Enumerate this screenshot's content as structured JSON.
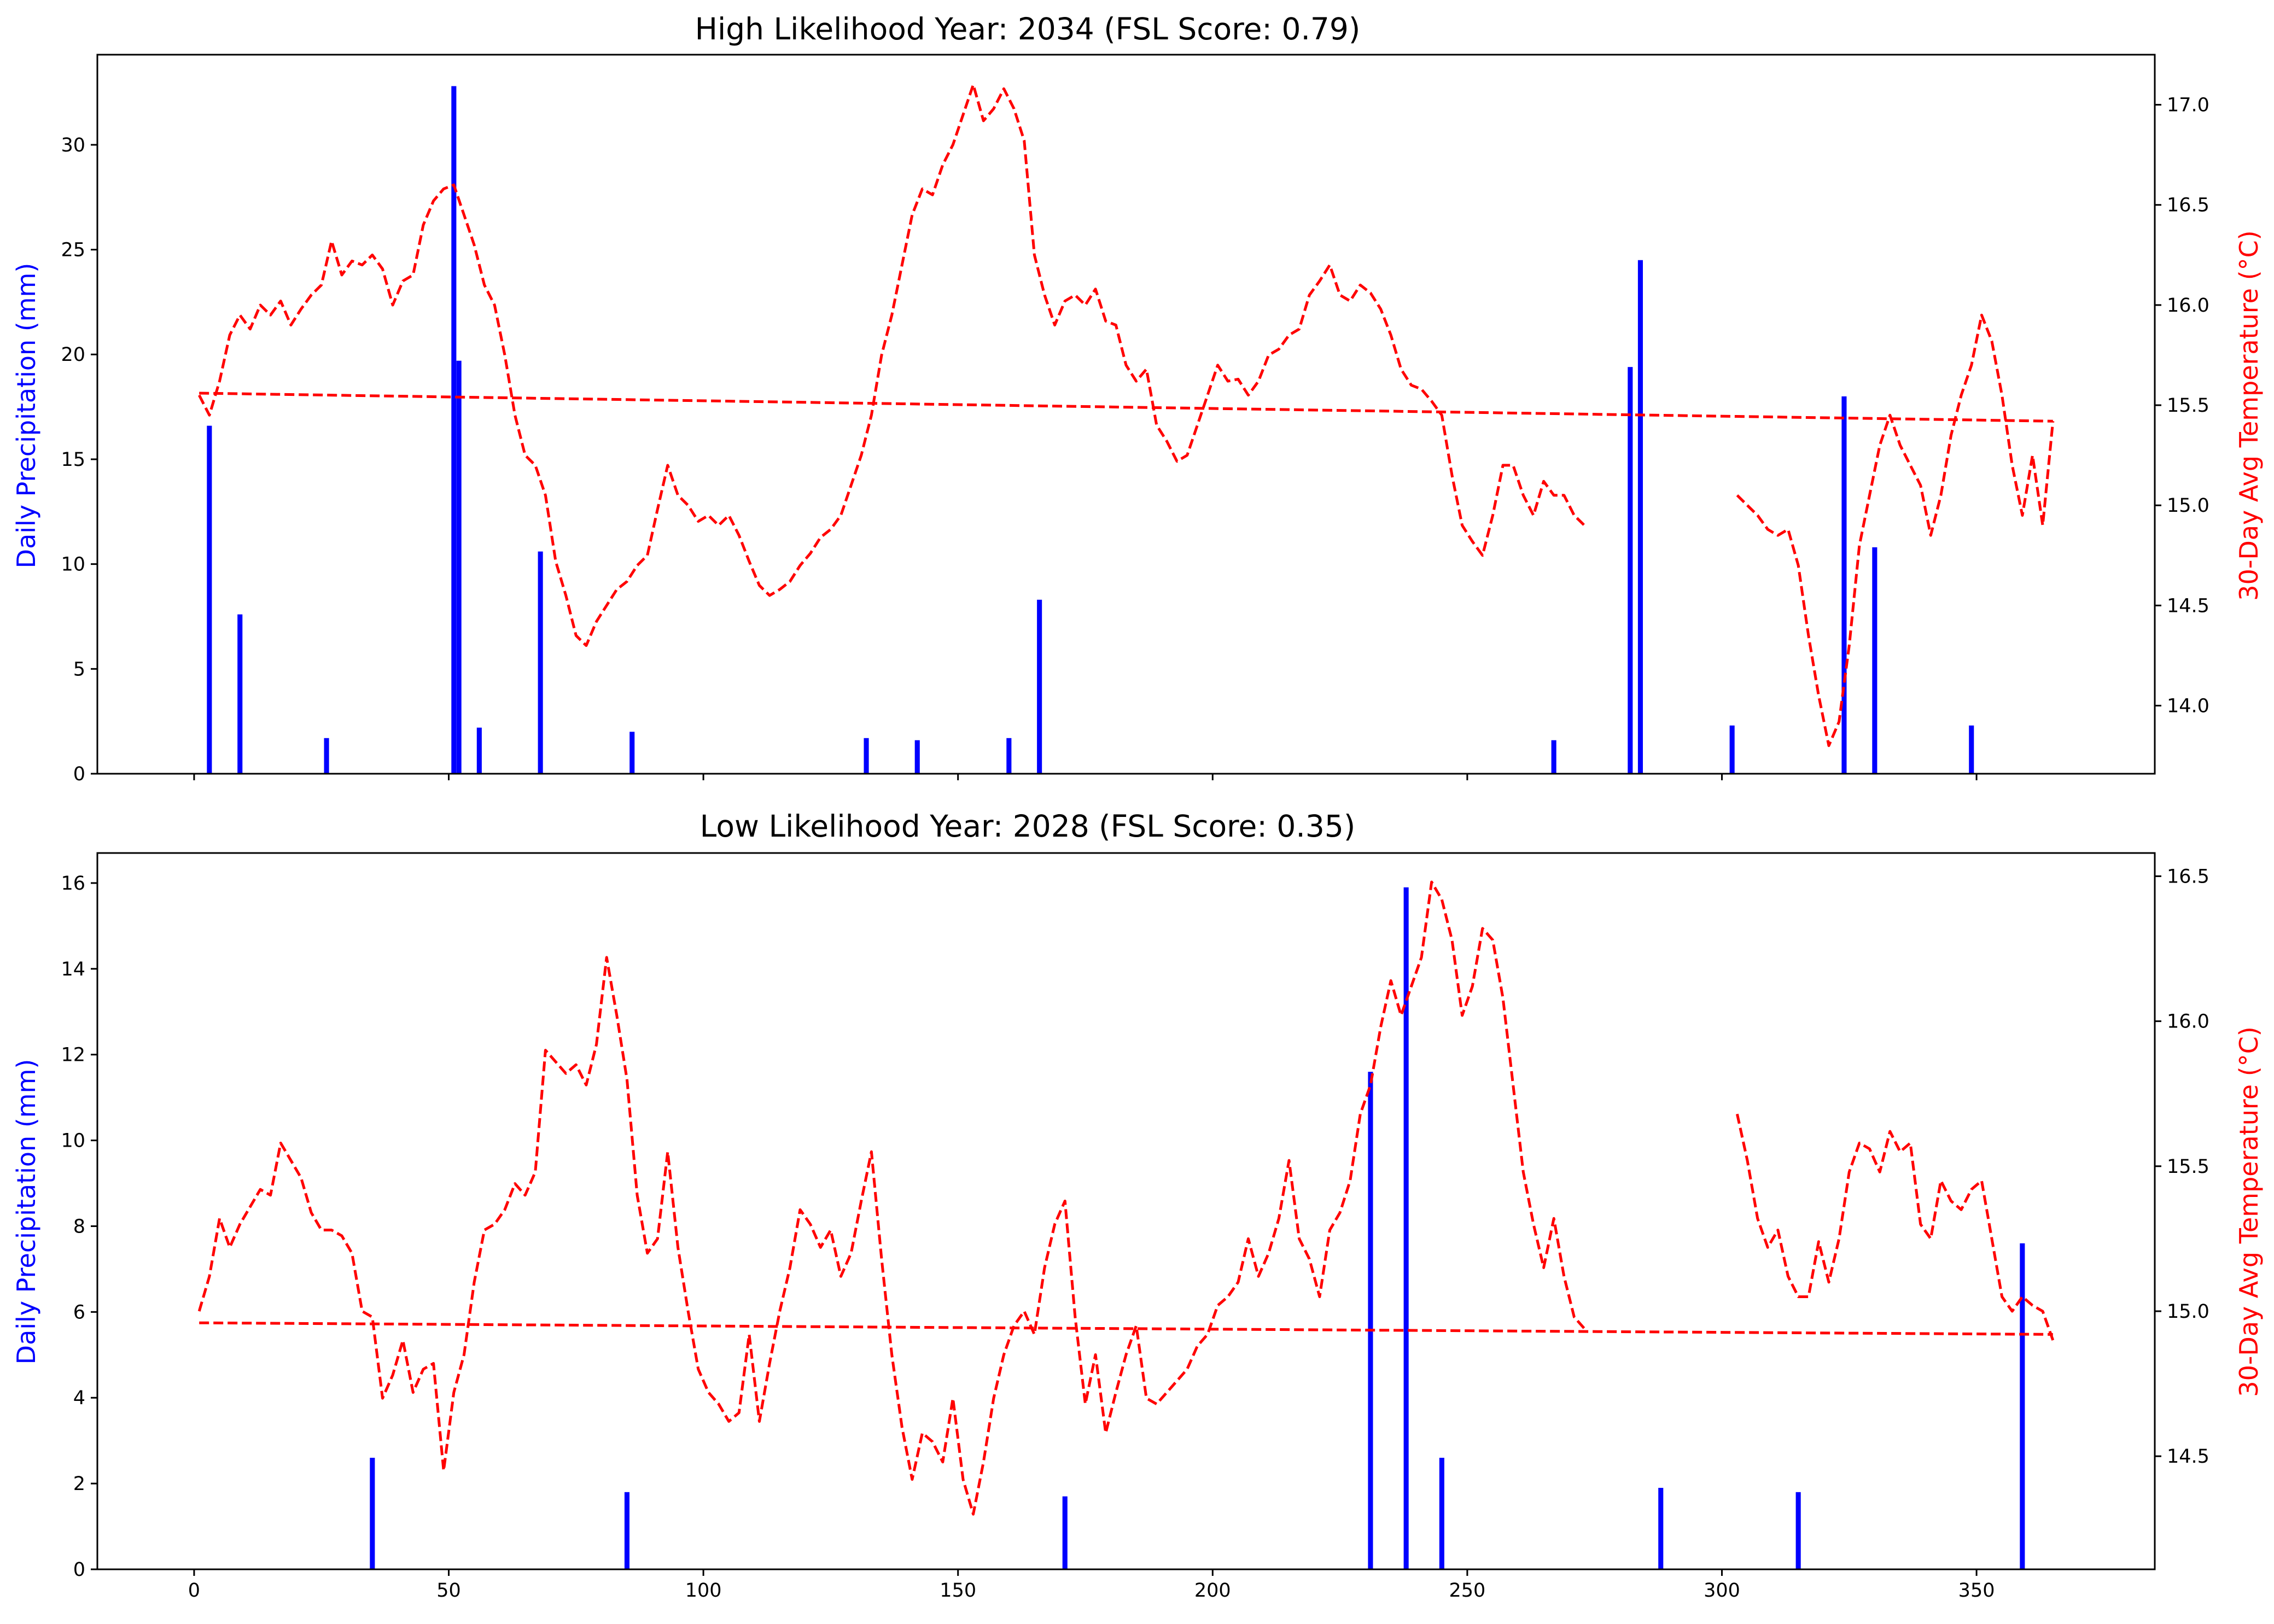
{
  "colors": {
    "precip": "#0000ff",
    "temp": "#ff0000",
    "axis": "#000000"
  },
  "chart_data": [
    {
      "type": "bar",
      "title": "High Likelihood Year: 2034 (FSL Score: 0.79)",
      "ylabel": "Daily Precipitation (mm)",
      "y2label": "30-Day Avg Temperature (°C)",
      "xlim": [
        -19,
        385
      ],
      "ylim": [
        0,
        34.3
      ],
      "y2lim": [
        13.66,
        17.25
      ],
      "x_ticks": [
        0,
        50,
        100,
        150,
        200,
        250,
        300,
        350
      ],
      "x_tick_labels": [],
      "y_ticks": [
        0,
        5,
        10,
        15,
        20,
        25,
        30
      ],
      "y_tick_labels": [
        "0",
        "5",
        "10",
        "15",
        "20",
        "25",
        "30"
      ],
      "y2_ticks": [
        14.0,
        14.5,
        15.0,
        15.5,
        16.0,
        16.5,
        17.0
      ],
      "y2_tick_labels": [
        "14.0",
        "14.5",
        "15.0",
        "15.5",
        "16.0",
        "16.5",
        "17.0"
      ],
      "precipitation": {
        "x": [
          3,
          9,
          26,
          51,
          52,
          56,
          68,
          86,
          132,
          142,
          160,
          166,
          267,
          282,
          284,
          302,
          324,
          330,
          349
        ],
        "values": [
          16.6,
          7.6,
          1.7,
          32.8,
          19.7,
          2.2,
          10.6,
          2.0,
          1.7,
          1.6,
          1.7,
          8.3,
          1.6,
          19.4,
          24.5,
          2.3,
          18.0,
          10.8,
          2.3
        ]
      },
      "temperature": [
        {
          "x": [
            1,
            3,
            5,
            7,
            9,
            11,
            13,
            15,
            17,
            19,
            21,
            23,
            25,
            27,
            29,
            31,
            33,
            35,
            37,
            39,
            41,
            43,
            45,
            47,
            49,
            51,
            53,
            55,
            57,
            59,
            61,
            63,
            65,
            67,
            69,
            71,
            73,
            75,
            77,
            79,
            81,
            83,
            85,
            87,
            89,
            91,
            93,
            95,
            97,
            99,
            101,
            103,
            105,
            107,
            109,
            111,
            113,
            115,
            117,
            119,
            121,
            123,
            125,
            127,
            129,
            131,
            133,
            135,
            137,
            139,
            141,
            143,
            145,
            147,
            149,
            151,
            153,
            155,
            157,
            159,
            161,
            163,
            165,
            167,
            169,
            171,
            173,
            175,
            177,
            179,
            181,
            183,
            185,
            187,
            189,
            191,
            193,
            195,
            197,
            199,
            201,
            203,
            205,
            207,
            209,
            211,
            213,
            215,
            217,
            219,
            221,
            223,
            225,
            227,
            229,
            231,
            233,
            235,
            237,
            239,
            241,
            243,
            245,
            247,
            249,
            251,
            253,
            255,
            257,
            259,
            261,
            263,
            265,
            267,
            269,
            271,
            273
          ],
          "values": [
            15.55,
            15.45,
            15.62,
            15.85,
            15.95,
            15.88,
            16.0,
            15.95,
            16.02,
            15.9,
            15.98,
            16.05,
            16.1,
            16.32,
            16.15,
            16.22,
            16.2,
            16.25,
            16.18,
            16.0,
            16.12,
            16.15,
            16.4,
            16.52,
            16.58,
            16.6,
            16.45,
            16.3,
            16.1,
            16.0,
            15.75,
            15.45,
            15.25,
            15.2,
            15.05,
            14.72,
            14.55,
            14.35,
            14.3,
            14.42,
            14.5,
            14.58,
            14.62,
            14.7,
            14.75,
            14.98,
            15.2,
            15.05,
            15.0,
            14.92,
            14.95,
            14.9,
            14.95,
            14.85,
            14.72,
            14.6,
            14.55,
            14.58,
            14.62,
            14.7,
            14.76,
            14.84,
            14.88,
            14.95,
            15.1,
            15.25,
            15.45,
            15.75,
            15.95,
            16.2,
            16.45,
            16.58,
            16.55,
            16.7,
            16.8,
            16.95,
            17.1,
            16.92,
            16.98,
            17.08,
            16.98,
            16.82,
            16.25,
            16.05,
            15.9,
            16.02,
            16.05,
            16.0,
            16.08,
            15.92,
            15.9,
            15.7,
            15.62,
            15.68,
            15.4,
            15.32,
            15.22,
            15.25,
            15.4,
            15.55,
            15.7,
            15.62,
            15.63,
            15.55,
            15.62,
            15.75,
            15.78,
            15.85,
            15.88,
            16.05,
            16.12,
            16.2,
            16.05,
            16.02,
            16.1,
            16.06,
            15.98,
            15.85,
            15.68,
            15.6,
            15.58,
            15.52,
            15.45,
            15.15,
            14.9,
            14.82,
            14.75,
            14.95,
            15.2,
            15.2,
            15.05,
            14.95,
            15.12,
            15.05,
            15.05,
            14.95,
            14.9
          ]
        },
        {
          "x": [
            303,
            305,
            307,
            309,
            311,
            313,
            315,
            317,
            319,
            321,
            323,
            325,
            327,
            329,
            331,
            333,
            335,
            337,
            339,
            341,
            343,
            345,
            347,
            349,
            351,
            353,
            355,
            357,
            359,
            361,
            363,
            365
          ],
          "values": [
            15.05,
            15.0,
            14.95,
            14.88,
            14.85,
            14.88,
            14.7,
            14.35,
            14.05,
            13.8,
            13.92,
            14.3,
            14.8,
            15.05,
            15.3,
            15.45,
            15.3,
            15.2,
            15.1,
            14.85,
            15.05,
            15.35,
            15.55,
            15.7,
            15.95,
            15.82,
            15.55,
            15.2,
            14.95,
            15.25,
            14.9,
            15.42
          ]
        }
      ],
      "trend": {
        "x": [
          1,
          365
        ],
        "values": [
          15.56,
          15.42
        ]
      }
    },
    {
      "type": "bar",
      "title": "Low Likelihood Year: 2028 (FSL Score: 0.35)",
      "ylabel": "Daily Precipitation (mm)",
      "y2label": "30-Day Avg Temperature (°C)",
      "xlim": [
        -19,
        385
      ],
      "ylim": [
        0,
        16.7
      ],
      "y2lim": [
        14.11,
        16.58
      ],
      "x_ticks": [
        0,
        50,
        100,
        150,
        200,
        250,
        300,
        350
      ],
      "x_tick_labels": [
        "0",
        "50",
        "100",
        "150",
        "200",
        "250",
        "300",
        "350"
      ],
      "y_ticks": [
        0,
        2,
        4,
        6,
        8,
        10,
        12,
        14,
        16
      ],
      "y_tick_labels": [
        "0",
        "2",
        "4",
        "6",
        "8",
        "10",
        "12",
        "14",
        "16"
      ],
      "y2_ticks": [
        14.5,
        15.0,
        15.5,
        16.0,
        16.5
      ],
      "y2_tick_labels": [
        "14.5",
        "15.0",
        "15.5",
        "16.0",
        "16.5"
      ],
      "precipitation": {
        "x": [
          35,
          85,
          171,
          231,
          238,
          245,
          288,
          315,
          359
        ],
        "values": [
          2.6,
          1.8,
          1.7,
          11.6,
          15.9,
          2.6,
          1.9,
          1.8,
          7.6
        ]
      },
      "temperature": [
        {
          "x": [
            1,
            3,
            5,
            7,
            9,
            11,
            13,
            15,
            17,
            19,
            21,
            23,
            25,
            27,
            29,
            31,
            33,
            35,
            37,
            39,
            41,
            43,
            45,
            47,
            49,
            51,
            53,
            55,
            57,
            59,
            61,
            63,
            65,
            67,
            69,
            71,
            73,
            75,
            77,
            79,
            81,
            83,
            85,
            87,
            89,
            91,
            93,
            95,
            97,
            99,
            101,
            103,
            105,
            107,
            109,
            111,
            113,
            115,
            117,
            119,
            121,
            123,
            125,
            127,
            129,
            131,
            133,
            135,
            137,
            139,
            141,
            143,
            145,
            147,
            149,
            151,
            153,
            155,
            157,
            159,
            161,
            163,
            165,
            167,
            169,
            171,
            173,
            175,
            177,
            179,
            181,
            183,
            185,
            187,
            189,
            191,
            193,
            195,
            197,
            199,
            201,
            203,
            205,
            207,
            209,
            211,
            213,
            215,
            217,
            219,
            221,
            223,
            225,
            227,
            229,
            231,
            233,
            235,
            237,
            239,
            241,
            243,
            245,
            247,
            249,
            251,
            253,
            255,
            257,
            259,
            261,
            263,
            265,
            267,
            269,
            271,
            273
          ],
          "values": [
            15.0,
            15.12,
            15.32,
            15.22,
            15.3,
            15.36,
            15.42,
            15.4,
            15.58,
            15.52,
            15.46,
            15.34,
            15.28,
            15.28,
            15.26,
            15.2,
            15.0,
            14.98,
            14.7,
            14.78,
            14.9,
            14.72,
            14.8,
            14.82,
            14.45,
            14.72,
            14.85,
            15.1,
            15.28,
            15.3,
            15.35,
            15.44,
            15.4,
            15.48,
            15.9,
            15.86,
            15.82,
            15.85,
            15.78,
            15.92,
            16.22,
            16.02,
            15.8,
            15.4,
            15.2,
            15.25,
            15.55,
            15.22,
            15.0,
            14.8,
            14.72,
            14.68,
            14.62,
            14.65,
            14.92,
            14.62,
            14.82,
            15.0,
            15.15,
            15.35,
            15.3,
            15.22,
            15.28,
            15.12,
            15.2,
            15.38,
            15.55,
            15.18,
            14.85,
            14.6,
            14.42,
            14.58,
            14.55,
            14.48,
            14.7,
            14.42,
            14.3,
            14.48,
            14.7,
            14.85,
            14.95,
            15.0,
            14.92,
            15.15,
            15.3,
            15.38,
            14.98,
            14.68,
            14.85,
            14.58,
            14.72,
            14.85,
            14.95,
            14.7,
            14.68,
            14.72,
            14.76,
            14.8,
            14.88,
            14.92,
            15.02,
            15.05,
            15.1,
            15.25,
            15.12,
            15.2,
            15.32,
            15.52,
            15.25,
            15.18,
            15.05,
            15.28,
            15.34,
            15.45,
            15.68,
            15.78,
            15.98,
            16.14,
            16.02,
            16.12,
            16.22,
            16.48,
            16.42,
            16.28,
            16.02,
            16.12,
            16.32,
            16.28,
            16.08,
            15.78,
            15.48,
            15.3,
            15.15,
            15.32,
            15.12,
            14.98,
            14.94
          ]
        },
        {
          "x": [
            303,
            305,
            307,
            309,
            311,
            313,
            315,
            317,
            319,
            321,
            323,
            325,
            327,
            329,
            331,
            333,
            335,
            337,
            339,
            341,
            343,
            345,
            347,
            349,
            351,
            353,
            355,
            357,
            359,
            361,
            363,
            365
          ],
          "values": [
            15.68,
            15.52,
            15.32,
            15.22,
            15.28,
            15.12,
            15.05,
            15.05,
            15.24,
            15.1,
            15.25,
            15.48,
            15.58,
            15.56,
            15.48,
            15.62,
            15.55,
            15.58,
            15.3,
            15.25,
            15.45,
            15.38,
            15.35,
            15.42,
            15.45,
            15.25,
            15.05,
            15.0,
            15.05,
            15.02,
            15.0,
            14.9
          ]
        }
      ],
      "trend": {
        "x": [
          1,
          365
        ],
        "values": [
          14.96,
          14.92
        ]
      }
    }
  ]
}
